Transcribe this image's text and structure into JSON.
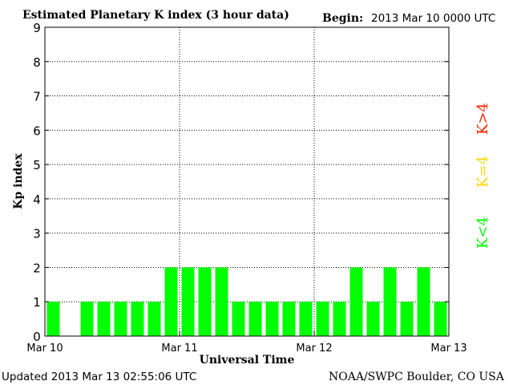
{
  "chart_data": {
    "type": "bar",
    "title": "Estimated Planetary K index (3 hour data)",
    "begin_label": "Begin:",
    "begin_value": "2013 Mar 10 0000 UTC",
    "xlabel": "Universal Time",
    "ylabel": "Kp index",
    "ylim": [
      0,
      9
    ],
    "yticks": [
      "0",
      "1",
      "2",
      "3",
      "4",
      "5",
      "6",
      "7",
      "8",
      "9"
    ],
    "xticks": [
      "Mar 10",
      "Mar 11",
      "Mar 12",
      "Mar 13"
    ],
    "grid": true,
    "values": [
      1,
      0,
      1,
      1,
      1,
      1,
      1,
      2,
      2,
      2,
      2,
      1,
      1,
      1,
      1,
      1,
      1,
      1,
      2,
      1,
      2,
      1,
      2,
      1
    ],
    "bar_color": "#00ff00",
    "legend": [
      {
        "label": "K<4",
        "color": "#00ff00"
      },
      {
        "label": "K=4",
        "color": "#ffd700"
      },
      {
        "label": "K>4",
        "color": "#ff2200"
      }
    ]
  },
  "footer": {
    "updated": "Updated 2013 Mar 13 02:55:06 UTC",
    "source": "NOAA/SWPC Boulder, CO USA"
  }
}
